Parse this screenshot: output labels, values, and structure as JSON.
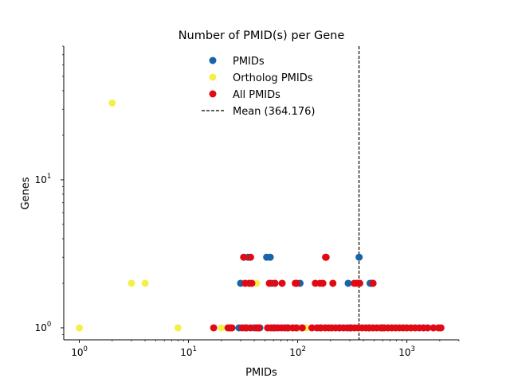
{
  "chart_data": {
    "type": "scatter",
    "title": "Number of PMID(s) per Gene",
    "xlabel": "PMIDs",
    "ylabel": "Genes",
    "xscale": "log",
    "yscale": "log",
    "xlim": [
      0.72,
      3000
    ],
    "ylim": [
      0.83,
      80
    ],
    "grid": false,
    "legend_position": "top-center",
    "x_tick_labels": [
      {
        "value": 1,
        "base": "10",
        "exp": "0"
      },
      {
        "value": 10,
        "base": "10",
        "exp": "1"
      },
      {
        "value": 100,
        "base": "10",
        "exp": "2"
      },
      {
        "value": 1000,
        "base": "10",
        "exp": "3"
      }
    ],
    "y_tick_labels": [
      {
        "value": 1,
        "base": "10",
        "exp": "0"
      },
      {
        "value": 10,
        "base": "10",
        "exp": "1"
      }
    ],
    "series": [
      {
        "name": "PMIDs",
        "color": "#1764ab",
        "points": [
          [
            30,
            2
          ],
          [
            35,
            3
          ],
          [
            52,
            3
          ],
          [
            56,
            3
          ],
          [
            58,
            2
          ],
          [
            105,
            2
          ],
          [
            290,
            2
          ],
          [
            365,
            3
          ],
          [
            460,
            2
          ],
          [
            480,
            2
          ],
          [
            29,
            1
          ],
          [
            33,
            1
          ],
          [
            40,
            1
          ],
          [
            45,
            1
          ],
          [
            60,
            1
          ],
          [
            80,
            1
          ],
          [
            100,
            1
          ],
          [
            160,
            1
          ],
          [
            240,
            1
          ],
          [
            300,
            1
          ],
          [
            450,
            1
          ],
          [
            600,
            1
          ]
        ]
      },
      {
        "name": "Ortholog PMIDs",
        "color": "#f5ef4a",
        "points": [
          [
            2,
            33
          ],
          [
            3,
            2
          ],
          [
            4,
            2
          ],
          [
            1,
            1
          ],
          [
            8,
            1
          ],
          [
            20,
            1
          ],
          [
            42,
            2
          ],
          [
            43,
            1
          ],
          [
            100,
            1
          ],
          [
            120,
            1
          ]
        ]
      },
      {
        "name": "All PMIDs",
        "color": "#e00a14",
        "points": [
          [
            32,
            3
          ],
          [
            37,
            3
          ],
          [
            180,
            3
          ],
          [
            182,
            3
          ],
          [
            33,
            2
          ],
          [
            36,
            2
          ],
          [
            38,
            2
          ],
          [
            55,
            2
          ],
          [
            62,
            2
          ],
          [
            72,
            2
          ],
          [
            95,
            2
          ],
          [
            98,
            2
          ],
          [
            145,
            2
          ],
          [
            160,
            2
          ],
          [
            170,
            2
          ],
          [
            210,
            2
          ],
          [
            330,
            2
          ],
          [
            350,
            2
          ],
          [
            370,
            2
          ],
          [
            490,
            2
          ],
          [
            17,
            1
          ],
          [
            23,
            1
          ],
          [
            24,
            1
          ],
          [
            25,
            1
          ],
          [
            31,
            1
          ],
          [
            34,
            1
          ],
          [
            37,
            1
          ],
          [
            42,
            1
          ],
          [
            44,
            1
          ],
          [
            53,
            1
          ],
          [
            57,
            1
          ],
          [
            62,
            1
          ],
          [
            66,
            1
          ],
          [
            71,
            1
          ],
          [
            76,
            1
          ],
          [
            82,
            1
          ],
          [
            90,
            1
          ],
          [
            97,
            1
          ],
          [
            110,
            1
          ],
          [
            135,
            1
          ],
          [
            150,
            1
          ],
          [
            163,
            1
          ],
          [
            178,
            1
          ],
          [
            192,
            1
          ],
          [
            205,
            1
          ],
          [
            222,
            1
          ],
          [
            242,
            1
          ],
          [
            262,
            1
          ],
          [
            283,
            1
          ],
          [
            308,
            1
          ],
          [
            332,
            1
          ],
          [
            358,
            1
          ],
          [
            388,
            1
          ],
          [
            420,
            1
          ],
          [
            452,
            1
          ],
          [
            490,
            1
          ],
          [
            530,
            1
          ],
          [
            575,
            1
          ],
          [
            622,
            1
          ],
          [
            673,
            1
          ],
          [
            728,
            1
          ],
          [
            788,
            1
          ],
          [
            853,
            1
          ],
          [
            923,
            1
          ],
          [
            1000,
            1
          ],
          [
            1090,
            1
          ],
          [
            1190,
            1
          ],
          [
            1300,
            1
          ],
          [
            1420,
            1
          ],
          [
            1550,
            1
          ],
          [
            1750,
            1
          ],
          [
            1950,
            1
          ],
          [
            2050,
            1
          ]
        ]
      }
    ],
    "mean_line": {
      "name": "Mean (364.176)",
      "value": 364.176,
      "color": "#000000",
      "style": "dashed"
    }
  }
}
